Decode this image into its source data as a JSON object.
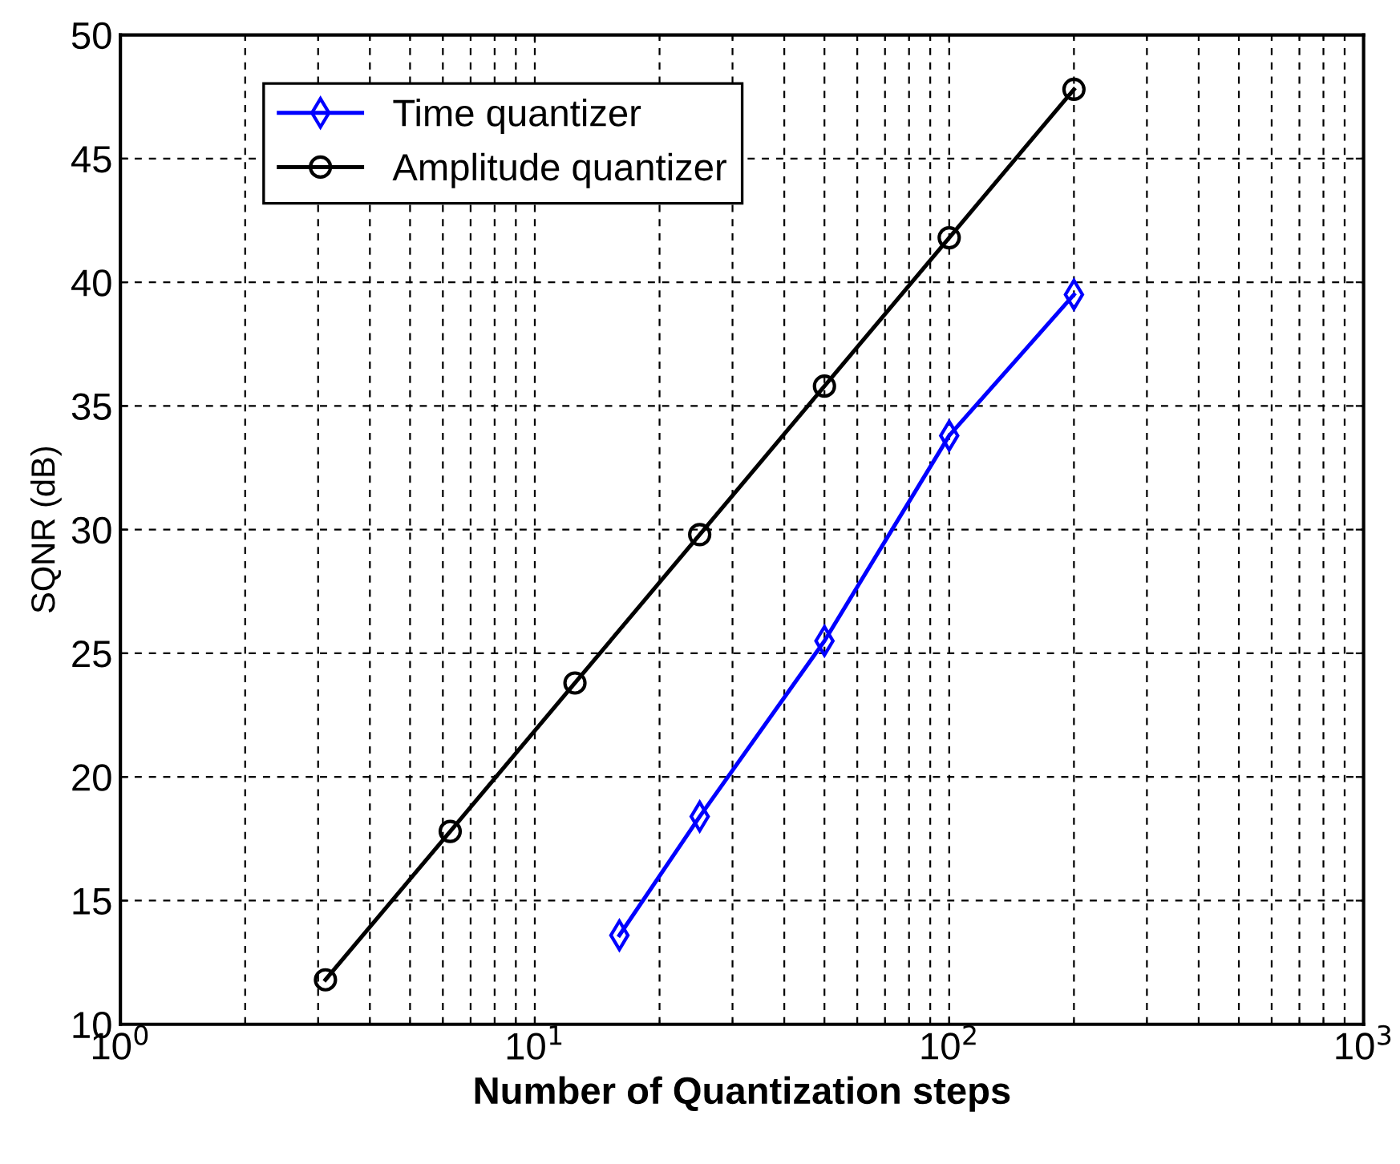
{
  "chart_data": {
    "type": "line",
    "xlabel": "Number of Quantization steps",
    "ylabel": "SQNR (dB)",
    "series": [
      {
        "name": "Time quantizer",
        "color": "#0000ff",
        "marker": "diamond",
        "x": [
          16,
          25,
          50,
          100,
          200
        ],
        "values": [
          13.6,
          18.4,
          25.5,
          33.8,
          39.5
        ]
      },
      {
        "name": "Amplitude quantizer",
        "color": "#000000",
        "marker": "circle",
        "x": [
          3.125,
          6.25,
          12.5,
          25,
          50,
          100,
          200
        ],
        "values": [
          11.8,
          17.8,
          23.8,
          29.8,
          35.8,
          41.8,
          47.8
        ]
      }
    ],
    "log": "x",
    "xlim": [
      1,
      1000
    ],
    "xticks": [
      {
        "value": 1,
        "label": "10$^{0}$"
      },
      {
        "value": 10,
        "label": "10$^{1}$"
      },
      {
        "value": 100,
        "label": "10$^{2}$"
      },
      {
        "value": 1000,
        "label": "10$^{3}$"
      }
    ],
    "ylim": [
      10,
      50
    ],
    "yticks": [
      10,
      15,
      20,
      25,
      30,
      35,
      40,
      45,
      50
    ],
    "grid": true,
    "legend": "top left",
    "line_style": "solid"
  }
}
